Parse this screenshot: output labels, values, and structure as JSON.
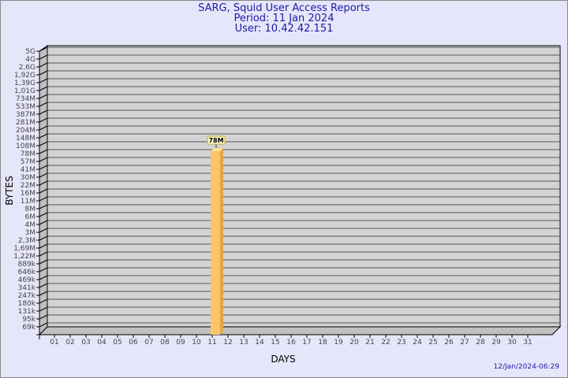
{
  "header": {
    "title": "SARG, Squid User Access Reports",
    "period": "Period: 11 Jan 2024",
    "user": "User: 10.42.42.151"
  },
  "footer": {
    "timestamp": "12/Jan/2024-06:29"
  },
  "colors": {
    "background": "#e6e6fa",
    "plot": "#d3d3d3",
    "bar": "#fbc566",
    "bar_side": "#e0a648",
    "title": "#1a1aa6"
  },
  "chart_data": {
    "type": "bar",
    "xlabel": "DAYS",
    "ylabel": "BYTES",
    "categories": [
      "01",
      "02",
      "03",
      "04",
      "05",
      "06",
      "07",
      "08",
      "09",
      "10",
      "11",
      "12",
      "13",
      "14",
      "15",
      "16",
      "17",
      "18",
      "19",
      "20",
      "21",
      "22",
      "23",
      "24",
      "25",
      "26",
      "27",
      "28",
      "29",
      "30",
      "31"
    ],
    "y_tick_labels": [
      "5G",
      "4G",
      "2,6G",
      "1,92G",
      "1,39G",
      "1,01G",
      "734M",
      "533M",
      "387M",
      "281M",
      "204M",
      "148M",
      "108M",
      "78M",
      "57M",
      "41M",
      "30M",
      "22M",
      "16M",
      "11M",
      "8M",
      "6M",
      "4M",
      "3M",
      "2,3M",
      "1,69M",
      "1,22M",
      "889k",
      "646k",
      "469k",
      "341k",
      "247k",
      "180k",
      "131k",
      "95k",
      "69k"
    ],
    "y_scale": "log",
    "grid": true,
    "series": [
      {
        "values": [
          null,
          null,
          null,
          null,
          null,
          null,
          null,
          null,
          null,
          null,
          "78M",
          null,
          null,
          null,
          null,
          null,
          null,
          null,
          null,
          null,
          null,
          null,
          null,
          null,
          null,
          null,
          null,
          null,
          null,
          null,
          null
        ]
      }
    ]
  }
}
